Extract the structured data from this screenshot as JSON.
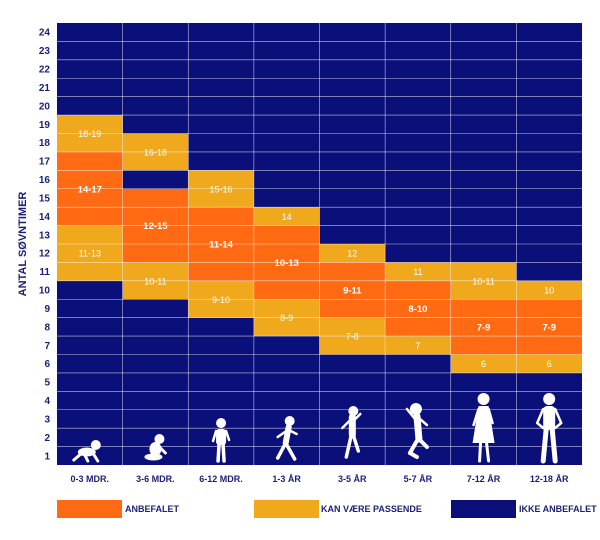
{
  "chart_data": {
    "type": "bar",
    "title": "",
    "ylabel": "ANTAL SØVNTIMER",
    "xlabel": "",
    "ylim": [
      0,
      24
    ],
    "y_ticks": [
      "1",
      "2",
      "3",
      "4",
      "5",
      "6",
      "7",
      "8",
      "9",
      "10",
      "11",
      "12",
      "13",
      "14",
      "15",
      "16",
      "17",
      "18",
      "19",
      "20",
      "21",
      "22",
      "23",
      "24"
    ],
    "categories": [
      "0-3 MDR.",
      "3-6 MDR.",
      "6-12 MDR.",
      "1-3 ÅR",
      "3-5 ÅR",
      "5-7 ÅR",
      "7-12 ÅR",
      "12-18 ÅR"
    ],
    "colors": {
      "anbefalet": "#ff6a13",
      "kan_vaere": "#f0a81c",
      "ikke": "#0b0f7a",
      "text": "#1a1f7a"
    },
    "groups": [
      {
        "upper": {
          "from": 17,
          "to": 19,
          "label": "18-19"
        },
        "recommended": {
          "from": 13,
          "to": 17,
          "label": "14-17"
        },
        "lower": {
          "from": 10,
          "to": 13,
          "label": "11-13"
        }
      },
      {
        "upper": {
          "from": 16,
          "to": 18,
          "label": "16-18"
        },
        "recommended": {
          "from": 11,
          "to": 15,
          "label": "12-15"
        },
        "lower": {
          "from": 9,
          "to": 11,
          "label": "10-11"
        }
      },
      {
        "upper": {
          "from": 14,
          "to": 16,
          "label": "15-16"
        },
        "recommended": {
          "from": 10,
          "to": 14,
          "label": "11-14"
        },
        "lower": {
          "from": 8,
          "to": 10,
          "label": "9-10"
        }
      },
      {
        "upper": {
          "from": 13,
          "to": 14,
          "label": "14"
        },
        "recommended": {
          "from": 9,
          "to": 13,
          "label": "10-13"
        },
        "lower": {
          "from": 7,
          "to": 9,
          "label": "8-9"
        }
      },
      {
        "upper": {
          "from": 11,
          "to": 12,
          "label": "12"
        },
        "recommended": {
          "from": 8,
          "to": 11,
          "label": "9-11"
        },
        "lower": {
          "from": 6,
          "to": 8,
          "label": "7-8"
        }
      },
      {
        "upper": {
          "from": 10,
          "to": 11,
          "label": "11"
        },
        "recommended": {
          "from": 7,
          "to": 10,
          "label": "8-10"
        },
        "lower": {
          "from": 6,
          "to": 7,
          "label": "7"
        }
      },
      {
        "upper": {
          "from": 9,
          "to": 11,
          "label": "10-11"
        },
        "recommended": {
          "from": 6,
          "to": 9,
          "label": "7-9"
        },
        "lower": {
          "from": 5,
          "to": 6,
          "label": "6"
        }
      },
      {
        "upper": {
          "from": 9,
          "to": 10,
          "label": "10"
        },
        "recommended": {
          "from": 6,
          "to": 9,
          "label": "7-9"
        },
        "lower": {
          "from": 5,
          "to": 6,
          "label": "6"
        }
      }
    ],
    "legend": [
      {
        "key": "anbefalet",
        "label": "ANBEFALET"
      },
      {
        "key": "kan_vaere",
        "label": "KAN VÆRE PASSENDE"
      },
      {
        "key": "ikke",
        "label": "IKKE ANBEFALET"
      }
    ],
    "silhouettes": [
      "baby-crawling-icon",
      "baby-sitting-icon",
      "toddler-standing-icon",
      "child-running-icon",
      "child-jumping-icon",
      "child-dancing-icon",
      "girl-standing-icon",
      "teen-standing-icon"
    ]
  }
}
